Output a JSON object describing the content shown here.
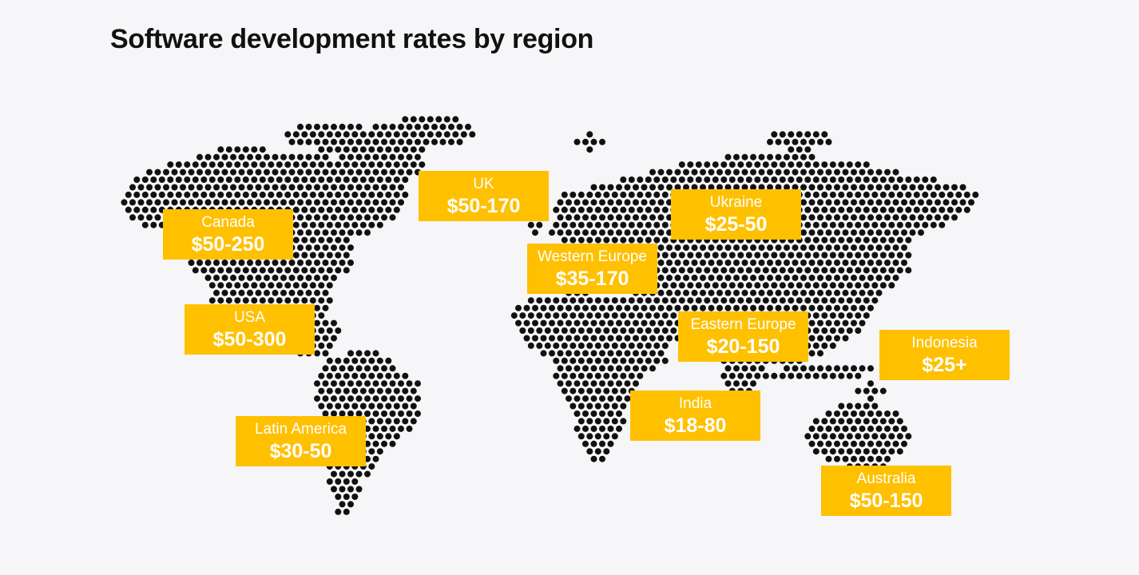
{
  "title": "Software development rates by region",
  "colors": {
    "background": "#f6f6f8",
    "card": "#ffc000",
    "card_text": "#ffffff",
    "dots": "#111111"
  },
  "map": {
    "style": "dotted world map",
    "dot_color": "#111111"
  },
  "regions": [
    {
      "name": "Canada",
      "rate": "$50-250"
    },
    {
      "name": "UK",
      "rate": "$50-170"
    },
    {
      "name": "Ukraine",
      "rate": "$25-50"
    },
    {
      "name": "Western Europe",
      "rate": "$35-170"
    },
    {
      "name": "USA",
      "rate": "$50-300"
    },
    {
      "name": "Eastern Europe",
      "rate": "$20-150"
    },
    {
      "name": "Indonesia",
      "rate": "$25+"
    },
    {
      "name": "India",
      "rate": "$18-80"
    },
    {
      "name": "Latin America",
      "rate": "$30-50"
    },
    {
      "name": "Australia",
      "rate": "$50-150"
    }
  ]
}
